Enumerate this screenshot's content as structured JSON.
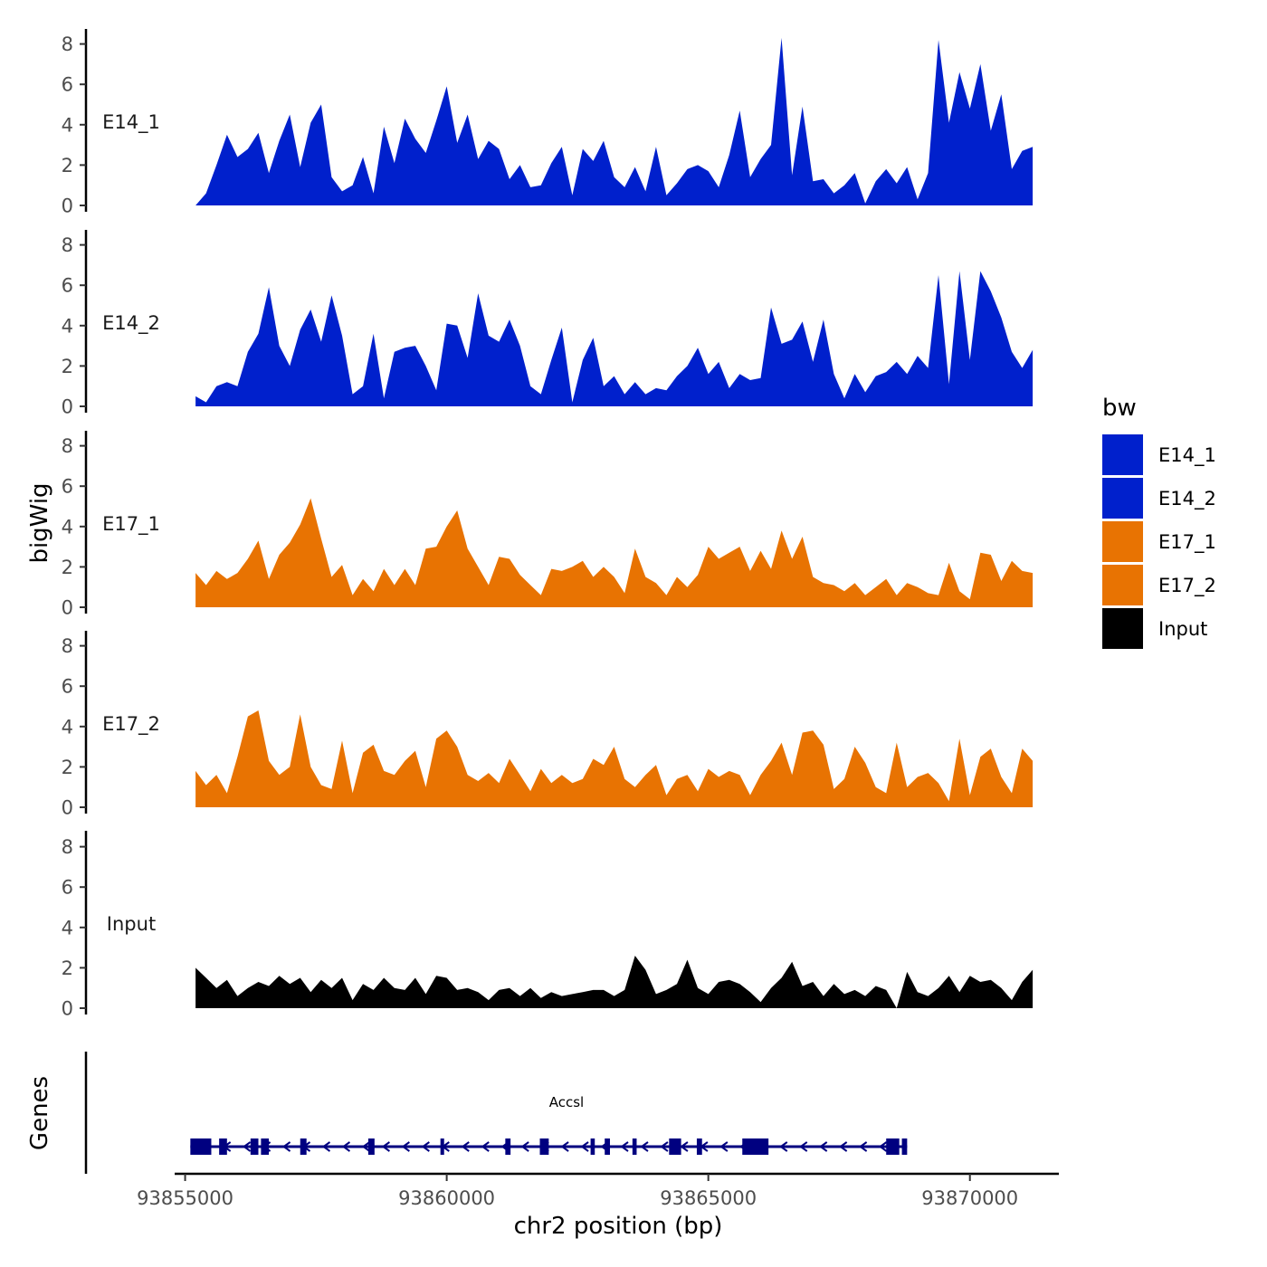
{
  "chart_data": {
    "type": "area",
    "xlabel": "chr2 position (bp)",
    "ylabel": "bigWig",
    "genes_panel_label": "Genes",
    "xlim": [
      93854800,
      93871700
    ],
    "x_ticks": [
      93855000,
      93860000,
      93865000,
      93870000
    ],
    "x_tick_labels": [
      "93855000",
      "93860000",
      "93865000",
      "93870000"
    ],
    "ylim": [
      0,
      8.5
    ],
    "y_ticks": [
      0,
      2,
      4,
      6,
      8
    ],
    "y_tick_labels": [
      "0",
      "2",
      "4",
      "6",
      "8"
    ],
    "legend": {
      "title": "bw",
      "position": "right",
      "entries": [
        {
          "label": "E14_1",
          "color": "#0020CC"
        },
        {
          "label": "E14_2",
          "color": "#0020CC"
        },
        {
          "label": "E17_1",
          "color": "#E87302"
        },
        {
          "label": "E17_2",
          "color": "#E87302"
        },
        {
          "label": "Input",
          "color": "#000000"
        }
      ]
    },
    "tracks": [
      {
        "name": "E14_1",
        "color": "#0020CC",
        "x": [
          93855200,
          93855400,
          93855600,
          93855800,
          93856000,
          93856200,
          93856400,
          93856600,
          93856800,
          93857000,
          93857200,
          93857400,
          93857600,
          93857800,
          93858000,
          93858200,
          93858400,
          93858600,
          93858800,
          93859000,
          93859200,
          93859400,
          93859600,
          93859800,
          93860000,
          93860200,
          93860400,
          93860600,
          93860800,
          93861000,
          93861200,
          93861400,
          93861600,
          93861800,
          93862000,
          93862200,
          93862400,
          93862600,
          93862800,
          93863000,
          93863200,
          93863400,
          93863600,
          93863800,
          93864000,
          93864200,
          93864400,
          93864600,
          93864800,
          93865000,
          93865200,
          93865400,
          93865600,
          93865800,
          93866000,
          93866200,
          93866400,
          93866600,
          93866800,
          93867000,
          93867200,
          93867400,
          93867600,
          93867800,
          93868000,
          93868200,
          93868400,
          93868600,
          93868800,
          93869000,
          93869200,
          93869400,
          93869600,
          93869800,
          93870000,
          93870200,
          93870400,
          93870600,
          93870800,
          93871000,
          93871200
        ],
        "y": [
          0.0,
          0.6,
          2.0,
          3.5,
          2.4,
          2.8,
          3.6,
          1.6,
          3.2,
          4.5,
          1.9,
          4.1,
          5.0,
          1.4,
          0.7,
          1.0,
          2.4,
          0.6,
          3.9,
          2.1,
          4.3,
          3.3,
          2.6,
          4.2,
          5.9,
          3.1,
          4.5,
          2.3,
          3.2,
          2.8,
          1.3,
          2.0,
          0.9,
          1.0,
          2.1,
          2.9,
          0.5,
          2.8,
          2.2,
          3.2,
          1.4,
          0.9,
          1.9,
          0.7,
          2.9,
          0.5,
          1.1,
          1.8,
          2.0,
          1.7,
          0.9,
          2.5,
          4.7,
          1.4,
          2.3,
          3.0,
          8.3,
          1.5,
          4.9,
          1.2,
          1.3,
          0.6,
          1.0,
          1.6,
          0.1,
          1.2,
          1.8,
          1.1,
          1.9,
          0.3,
          1.6,
          8.2,
          4.1,
          6.6,
          4.8,
          7.0,
          3.7,
          5.5,
          1.8,
          2.7,
          2.9
        ]
      },
      {
        "name": "E14_2",
        "color": "#0020CC",
        "x": [
          93855200,
          93855400,
          93855600,
          93855800,
          93856000,
          93856200,
          93856400,
          93856600,
          93856800,
          93857000,
          93857200,
          93857400,
          93857600,
          93857800,
          93858000,
          93858200,
          93858400,
          93858600,
          93858800,
          93859000,
          93859200,
          93859400,
          93859600,
          93859800,
          93860000,
          93860200,
          93860400,
          93860600,
          93860800,
          93861000,
          93861200,
          93861400,
          93861600,
          93861800,
          93862000,
          93862200,
          93862400,
          93862600,
          93862800,
          93863000,
          93863200,
          93863400,
          93863600,
          93863800,
          93864000,
          93864200,
          93864400,
          93864600,
          93864800,
          93865000,
          93865200,
          93865400,
          93865600,
          93865800,
          93866000,
          93866200,
          93866400,
          93866600,
          93866800,
          93867000,
          93867200,
          93867400,
          93867600,
          93867800,
          93868000,
          93868200,
          93868400,
          93868600,
          93868800,
          93869000,
          93869200,
          93869400,
          93869600,
          93869800,
          93870000,
          93870200,
          93870400,
          93870600,
          93870800,
          93871000,
          93871200
        ],
        "y": [
          0.5,
          0.2,
          1.0,
          1.2,
          1.0,
          2.7,
          3.6,
          5.9,
          3.0,
          2.0,
          3.8,
          4.8,
          3.2,
          5.5,
          3.5,
          0.6,
          1.0,
          3.6,
          0.4,
          2.7,
          2.9,
          3.0,
          2.0,
          0.8,
          4.1,
          4.0,
          2.4,
          5.6,
          3.5,
          3.2,
          4.3,
          3.0,
          1.0,
          0.6,
          2.3,
          3.9,
          0.2,
          2.3,
          3.4,
          1.0,
          1.5,
          0.6,
          1.2,
          0.6,
          0.9,
          0.8,
          1.5,
          2.0,
          2.9,
          1.6,
          2.2,
          0.9,
          1.6,
          1.3,
          1.4,
          4.9,
          3.1,
          3.3,
          4.2,
          2.2,
          4.3,
          1.6,
          0.4,
          1.6,
          0.7,
          1.5,
          1.7,
          2.2,
          1.6,
          2.5,
          1.9,
          6.5,
          1.1,
          6.7,
          2.3,
          6.7,
          5.7,
          4.4,
          2.7,
          1.9,
          2.8
        ]
      },
      {
        "name": "E17_1",
        "color": "#E87302",
        "x": [
          93855200,
          93855400,
          93855600,
          93855800,
          93856000,
          93856200,
          93856400,
          93856600,
          93856800,
          93857000,
          93857200,
          93857400,
          93857600,
          93857800,
          93858000,
          93858200,
          93858400,
          93858600,
          93858800,
          93859000,
          93859200,
          93859400,
          93859600,
          93859800,
          93860000,
          93860200,
          93860400,
          93860600,
          93860800,
          93861000,
          93861200,
          93861400,
          93861600,
          93861800,
          93862000,
          93862200,
          93862400,
          93862600,
          93862800,
          93863000,
          93863200,
          93863400,
          93863600,
          93863800,
          93864000,
          93864200,
          93864400,
          93864600,
          93864800,
          93865000,
          93865200,
          93865400,
          93865600,
          93865800,
          93866000,
          93866200,
          93866400,
          93866600,
          93866800,
          93867000,
          93867200,
          93867400,
          93867600,
          93867800,
          93868000,
          93868200,
          93868400,
          93868600,
          93868800,
          93869000,
          93869200,
          93869400,
          93869600,
          93869800,
          93870000,
          93870200,
          93870400,
          93870600,
          93870800,
          93871000,
          93871200
        ],
        "y": [
          1.7,
          1.1,
          1.8,
          1.4,
          1.7,
          2.4,
          3.3,
          1.4,
          2.6,
          3.2,
          4.1,
          5.4,
          3.4,
          1.5,
          2.1,
          0.6,
          1.4,
          0.8,
          1.9,
          1.1,
          1.9,
          1.1,
          2.9,
          3.0,
          4.0,
          4.8,
          2.9,
          2.0,
          1.1,
          2.5,
          2.4,
          1.6,
          1.1,
          0.6,
          1.9,
          1.8,
          2.0,
          2.3,
          1.5,
          2.0,
          1.5,
          0.7,
          2.9,
          1.5,
          1.2,
          0.6,
          1.5,
          1.0,
          1.6,
          3.0,
          2.4,
          2.7,
          3.0,
          1.8,
          2.8,
          1.9,
          3.8,
          2.4,
          3.5,
          1.5,
          1.2,
          1.1,
          0.8,
          1.2,
          0.6,
          1.0,
          1.4,
          0.6,
          1.2,
          1.0,
          0.7,
          0.6,
          2.2,
          0.8,
          0.4,
          2.7,
          2.6,
          1.3,
          2.3,
          1.8,
          1.7
        ]
      },
      {
        "name": "E17_2",
        "color": "#E87302",
        "x": [
          93855200,
          93855400,
          93855600,
          93855800,
          93856000,
          93856200,
          93856400,
          93856600,
          93856800,
          93857000,
          93857200,
          93857400,
          93857600,
          93857800,
          93858000,
          93858200,
          93858400,
          93858600,
          93858800,
          93859000,
          93859200,
          93859400,
          93859600,
          93859800,
          93860000,
          93860200,
          93860400,
          93860600,
          93860800,
          93861000,
          93861200,
          93861400,
          93861600,
          93861800,
          93862000,
          93862200,
          93862400,
          93862600,
          93862800,
          93863000,
          93863200,
          93863400,
          93863600,
          93863800,
          93864000,
          93864200,
          93864400,
          93864600,
          93864800,
          93865000,
          93865200,
          93865400,
          93865600,
          93865800,
          93866000,
          93866200,
          93866400,
          93866600,
          93866800,
          93867000,
          93867200,
          93867400,
          93867600,
          93867800,
          93868000,
          93868200,
          93868400,
          93868600,
          93868800,
          93869000,
          93869200,
          93869400,
          93869600,
          93869800,
          93870000,
          93870200,
          93870400,
          93870600,
          93870800,
          93871000,
          93871200
        ],
        "y": [
          1.8,
          1.1,
          1.6,
          0.7,
          2.5,
          4.5,
          4.8,
          2.3,
          1.6,
          2.0,
          4.6,
          2.0,
          1.1,
          0.9,
          3.3,
          0.7,
          2.7,
          3.1,
          1.8,
          1.6,
          2.3,
          2.8,
          1.0,
          3.4,
          3.8,
          3.0,
          1.6,
          1.3,
          1.7,
          1.2,
          2.4,
          1.6,
          0.8,
          1.9,
          1.2,
          1.6,
          1.2,
          1.4,
          2.4,
          2.1,
          3.0,
          1.4,
          1.0,
          1.6,
          2.1,
          0.6,
          1.4,
          1.6,
          0.8,
          1.9,
          1.5,
          1.8,
          1.6,
          0.6,
          1.6,
          2.3,
          3.2,
          1.6,
          3.7,
          3.8,
          3.1,
          0.9,
          1.4,
          3.0,
          2.2,
          1.0,
          0.7,
          3.2,
          1.0,
          1.5,
          1.7,
          1.2,
          0.3,
          3.4,
          0.6,
          2.5,
          2.9,
          1.5,
          0.7,
          2.9,
          2.3
        ]
      },
      {
        "name": "Input",
        "color": "#000000",
        "x": [
          93855200,
          93855400,
          93855600,
          93855800,
          93856000,
          93856200,
          93856400,
          93856600,
          93856800,
          93857000,
          93857200,
          93857400,
          93857600,
          93857800,
          93858000,
          93858200,
          93858400,
          93858600,
          93858800,
          93859000,
          93859200,
          93859400,
          93859600,
          93859800,
          93860000,
          93860200,
          93860400,
          93860600,
          93860800,
          93861000,
          93861200,
          93861400,
          93861600,
          93861800,
          93862000,
          93862200,
          93862400,
          93862600,
          93862800,
          93863000,
          93863200,
          93863400,
          93863600,
          93863800,
          93864000,
          93864200,
          93864400,
          93864600,
          93864800,
          93865000,
          93865200,
          93865400,
          93865600,
          93865800,
          93866000,
          93866200,
          93866400,
          93866600,
          93866800,
          93867000,
          93867200,
          93867400,
          93867600,
          93867800,
          93868000,
          93868200,
          93868400,
          93868600,
          93868800,
          93869000,
          93869200,
          93869400,
          93869600,
          93869800,
          93870000,
          93870200,
          93870400,
          93870600,
          93870800,
          93871000,
          93871200
        ],
        "y": [
          2.0,
          1.5,
          1.0,
          1.4,
          0.6,
          1.0,
          1.3,
          1.1,
          1.6,
          1.2,
          1.5,
          0.8,
          1.4,
          1.0,
          1.5,
          0.4,
          1.2,
          0.9,
          1.5,
          1.0,
          0.9,
          1.5,
          0.7,
          1.6,
          1.5,
          0.9,
          1.0,
          0.8,
          0.4,
          0.9,
          1.0,
          0.6,
          1.0,
          0.5,
          0.8,
          0.6,
          0.7,
          0.8,
          0.9,
          0.9,
          0.6,
          0.9,
          2.6,
          1.9,
          0.7,
          0.9,
          1.2,
          2.4,
          1.0,
          0.7,
          1.3,
          1.4,
          1.2,
          0.8,
          0.3,
          1.0,
          1.5,
          2.3,
          1.1,
          1.3,
          0.6,
          1.2,
          0.7,
          0.9,
          0.6,
          1.1,
          0.9,
          0.0,
          1.8,
          0.8,
          0.6,
          1.0,
          1.6,
          0.8,
          1.6,
          1.3,
          1.4,
          1.0,
          0.4,
          1.3,
          1.9
        ]
      }
    ],
    "gene_track": {
      "gene_name": "Accsl",
      "strand": "-",
      "start": 93855100,
      "end": 93868800,
      "color": "#000080",
      "exons": [
        [
          93855100,
          93855500
        ],
        [
          93855650,
          93855800
        ],
        [
          93856250,
          93856400
        ],
        [
          93856450,
          93856600
        ],
        [
          93857200,
          93857320
        ],
        [
          93858500,
          93858620
        ],
        [
          93859880,
          93859950
        ],
        [
          93861120,
          93861220
        ],
        [
          93861780,
          93861950
        ],
        [
          93862750,
          93862830
        ],
        [
          93863020,
          93863120
        ],
        [
          93863550,
          93863630
        ],
        [
          93864250,
          93864480
        ],
        [
          93864780,
          93864880
        ],
        [
          93865650,
          93866150
        ],
        [
          93868400,
          93868650
        ],
        [
          93868700,
          93868800
        ]
      ]
    }
  }
}
